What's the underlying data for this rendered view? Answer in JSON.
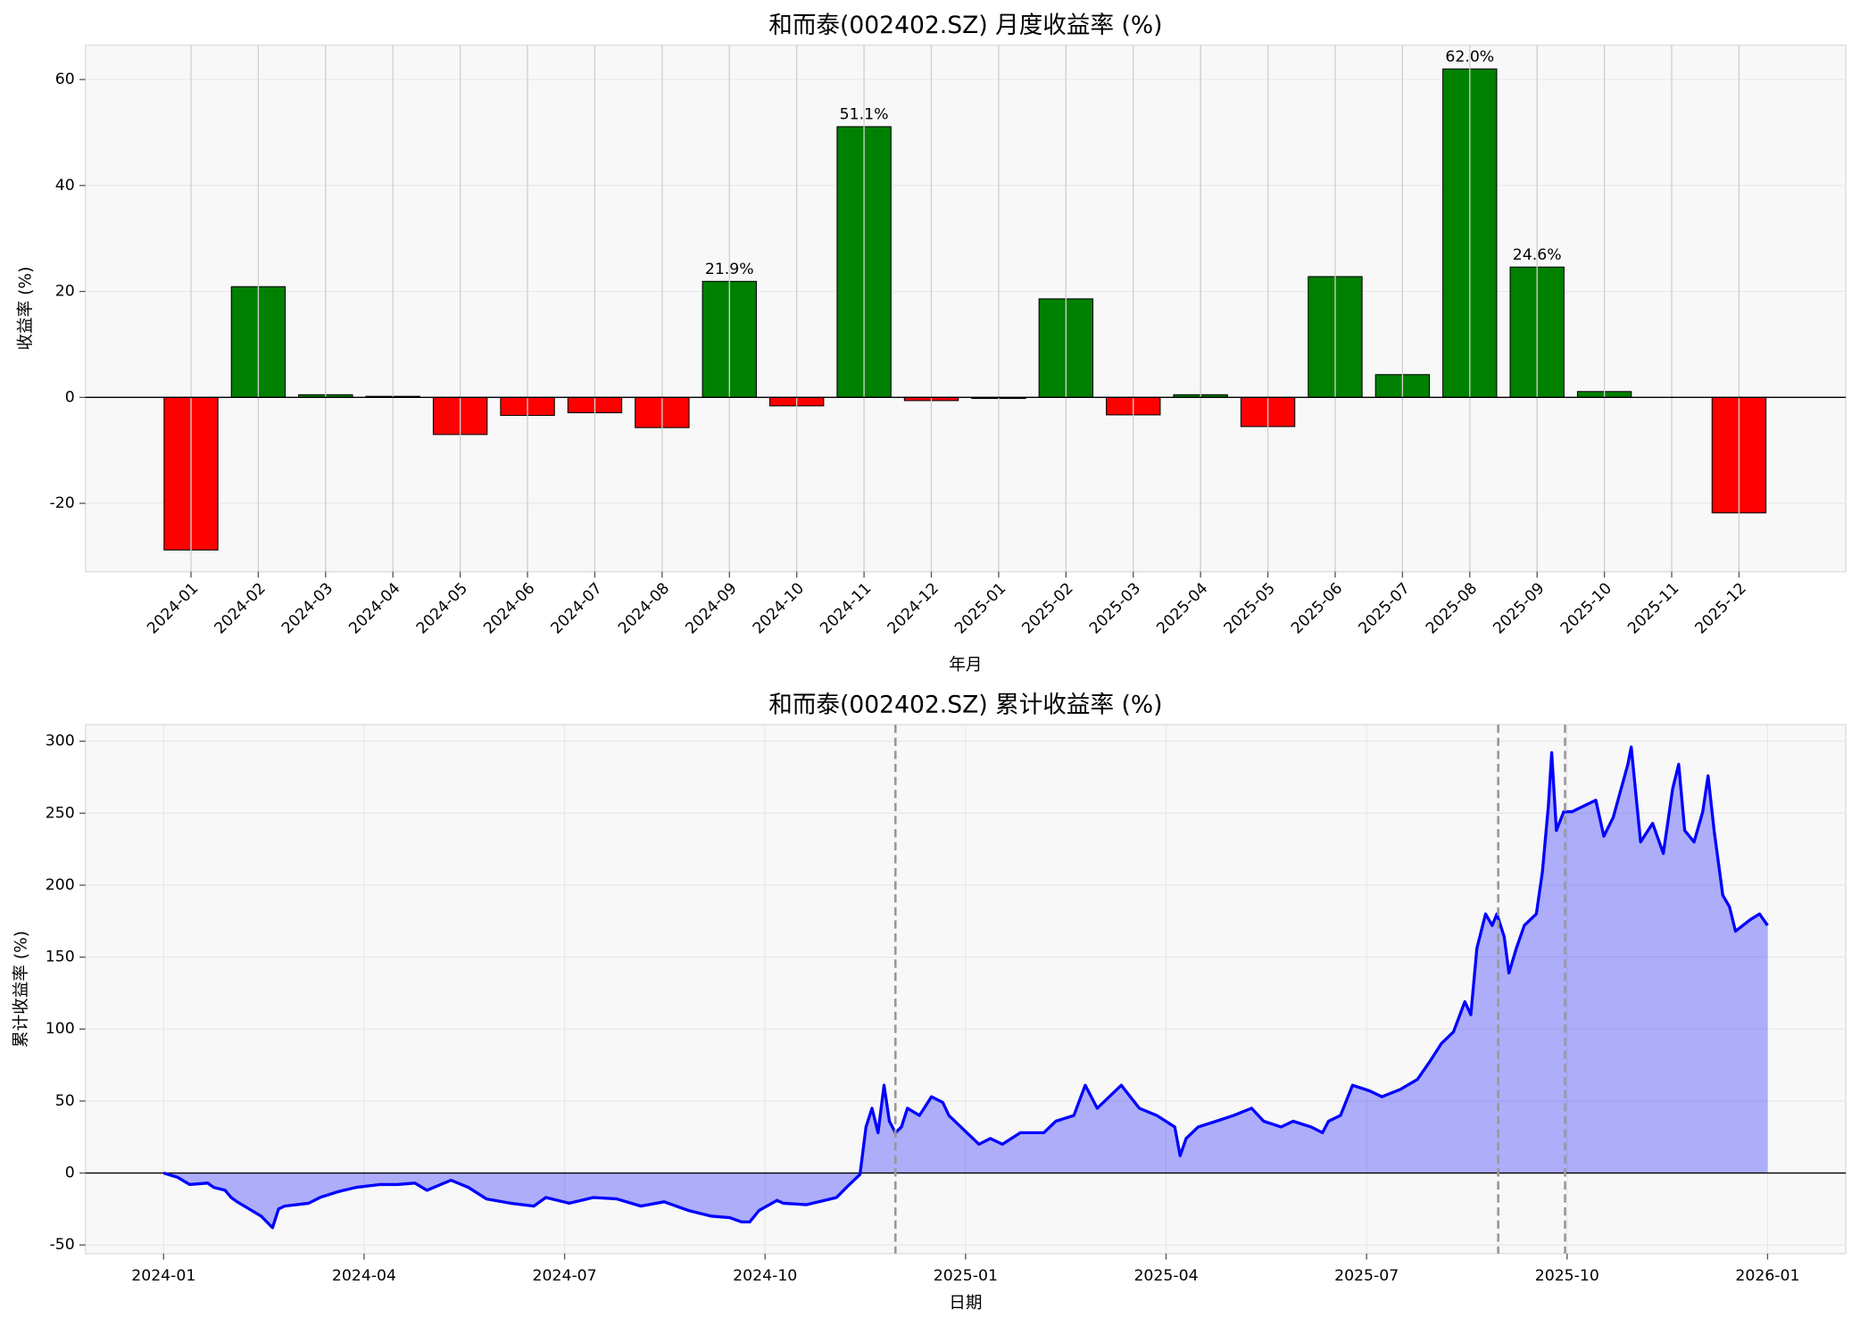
{
  "chart_data": [
    {
      "type": "bar",
      "title": "和而泰(002402.SZ) 月度收益率 (%)",
      "xlabel": "年月",
      "ylabel": "收益率 (%)",
      "categories": [
        "2024-01",
        "2024-02",
        "2024-03",
        "2024-04",
        "2024-05",
        "2024-06",
        "2024-07",
        "2024-08",
        "2024-09",
        "2024-10",
        "2024-11",
        "2024-12",
        "2025-01",
        "2025-02",
        "2025-03",
        "2025-04",
        "2025-05",
        "2025-06",
        "2025-07",
        "2025-08",
        "2025-09",
        "2025-10",
        "2025-11",
        "2025-12"
      ],
      "values": [
        -28.8,
        20.9,
        0.5,
        0.2,
        -7.0,
        -3.4,
        -2.9,
        -5.7,
        21.9,
        -1.6,
        51.1,
        -0.6,
        -0.2,
        18.6,
        -3.3,
        0.5,
        -5.5,
        22.8,
        4.3,
        62.0,
        24.6,
        1.1,
        0.0,
        -21.8
      ],
      "value_labels": [
        null,
        null,
        null,
        null,
        null,
        null,
        null,
        null,
        "21.9%",
        null,
        "51.1%",
        null,
        null,
        null,
        null,
        null,
        null,
        null,
        null,
        "62.0%",
        "24.6%",
        null,
        null,
        null
      ],
      "positive_color": "#008000",
      "negative_color": "#ff0000",
      "ylim": [
        -32.9,
        66.5
      ],
      "yticks": [
        -20,
        0,
        20,
        40,
        60
      ],
      "grid": true
    },
    {
      "type": "area",
      "title": "和而泰(002402.SZ) 累计收益率 (%)",
      "xlabel": "日期",
      "ylabel": "累计收益率 (%)",
      "x": [
        0,
        0.21,
        0.39,
        0.66,
        0.75,
        0.92,
        1.01,
        1.1,
        1.28,
        1.46,
        1.63,
        1.72,
        1.81,
        2.17,
        2.34,
        2.61,
        2.88,
        3.23,
        3.5,
        3.76,
        3.94,
        4.3,
        4.56,
        4.83,
        5.19,
        5.54,
        5.72,
        6.07,
        6.43,
        6.78,
        7.14,
        7.49,
        7.85,
        8.2,
        8.47,
        8.65,
        8.77,
        8.91,
        9.18,
        9.27,
        9.62,
        9.89,
        10.07,
        10.24,
        10.42,
        10.51,
        10.6,
        10.69,
        10.78,
        10.86,
        10.95,
        11.04,
        11.13,
        11.31,
        11.49,
        11.66,
        11.75,
        12.02,
        12.2,
        12.37,
        12.55,
        12.82,
        13.17,
        13.35,
        13.62,
        13.79,
        13.97,
        14.15,
        14.33,
        14.6,
        14.86,
        15.13,
        15.21,
        15.3,
        15.48,
        15.75,
        16.01,
        16.28,
        16.46,
        16.72,
        16.9,
        17.17,
        17.34,
        17.43,
        17.61,
        17.79,
        18.05,
        18.23,
        18.5,
        18.76,
        18.94,
        19.12,
        19.3,
        19.47,
        19.56,
        19.65,
        19.78,
        19.88,
        19.95,
        20.06,
        20.13,
        20.24,
        20.36,
        20.54,
        20.63,
        20.72,
        20.77,
        20.84,
        20.95,
        21.07,
        21.25,
        21.43,
        21.55,
        21.69,
        21.91,
        21.96,
        22.1,
        22.28,
        22.44,
        22.58,
        22.67,
        22.76,
        22.9,
        23.03,
        23.11,
        23.2,
        23.33,
        23.43,
        23.52,
        23.74,
        23.88,
        24.0
      ],
      "values": [
        0,
        -3,
        -8,
        -7,
        -10,
        -12,
        -17,
        -20,
        -25,
        -30,
        -38,
        -25,
        -23,
        -21,
        -17,
        -13,
        -10,
        -8,
        -8,
        -7,
        -12,
        -5,
        -10,
        -18,
        -21,
        -23,
        -17,
        -21,
        -17,
        -18,
        -23,
        -20,
        -26,
        -30,
        -31,
        -34,
        -34,
        -26,
        -19,
        -21,
        -22,
        -19,
        -17,
        -9,
        -1,
        32,
        45,
        28,
        61,
        36,
        28,
        32,
        45,
        40,
        53,
        49,
        40,
        28,
        20,
        24,
        20,
        28,
        28,
        36,
        40,
        61,
        45,
        53,
        61,
        45,
        40,
        32,
        12,
        24,
        32,
        36,
        40,
        45,
        36,
        32,
        36,
        32,
        28,
        36,
        40,
        61,
        57,
        53,
        58,
        65,
        77,
        90,
        98,
        119,
        110,
        156,
        180,
        172,
        180,
        164,
        139,
        156,
        172,
        180,
        209,
        255,
        292,
        238,
        251,
        251,
        255,
        259,
        234,
        247,
        284,
        296,
        230,
        243,
        222,
        267,
        284,
        238,
        230,
        251,
        276,
        238,
        193,
        185,
        168,
        176,
        180,
        172
      ],
      "color": "#0000ff",
      "fill_opacity": 0.3,
      "vlines": [
        10.95,
        19.97,
        20.97
      ],
      "xlim": [
        -1.17,
        25.17
      ],
      "xticks": [
        {
          "value": 0,
          "label": "2024-01"
        },
        {
          "value": 3,
          "label": "2024-04"
        },
        {
          "value": 6,
          "label": "2024-07"
        },
        {
          "value": 9,
          "label": "2024-10"
        },
        {
          "value": 12,
          "label": "2025-01"
        },
        {
          "value": 15,
          "label": "2025-04"
        },
        {
          "value": 18,
          "label": "2025-07"
        },
        {
          "value": 21,
          "label": "2025-10"
        },
        {
          "value": 24,
          "label": "2026-01"
        }
      ],
      "ylim": [
        -56,
        311.5
      ],
      "yticks": [
        -50,
        0,
        50,
        100,
        150,
        200,
        250,
        300
      ],
      "grid": true
    }
  ]
}
